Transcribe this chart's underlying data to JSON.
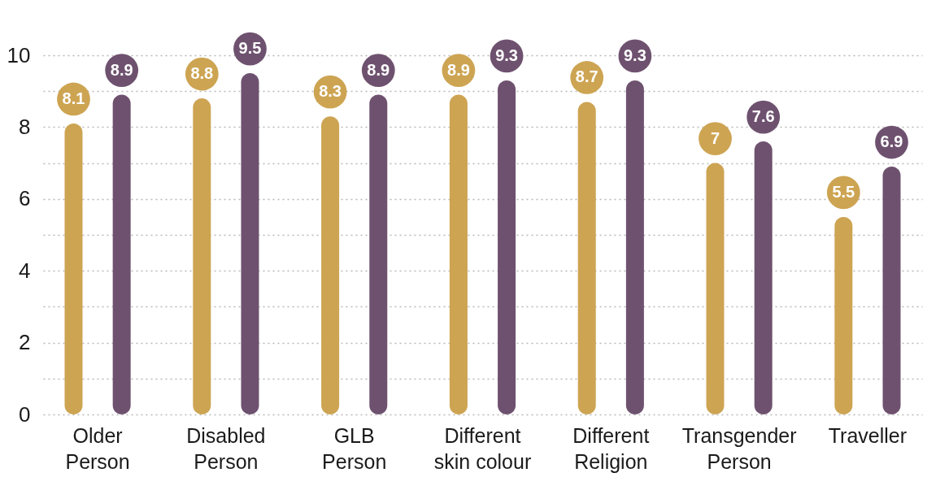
{
  "chart_data": {
    "type": "bar",
    "categories": [
      "Older Person",
      "Disabled Person",
      "GLB Person",
      "Different skin colour",
      "Different Religion",
      "Transgender Person",
      "Traveller"
    ],
    "series": [
      {
        "color": "#cda452",
        "values": [
          8.1,
          8.8,
          8.3,
          8.9,
          8.7,
          7,
          5.5
        ]
      },
      {
        "color": "#6e516f",
        "values": [
          8.9,
          9.5,
          8.9,
          9.3,
          9.3,
          7.6,
          6.9
        ]
      }
    ],
    "ylim": [
      0,
      10
    ],
    "yticks": [
      0,
      {
        "value": 1,
        "label": null
      },
      2,
      {
        "value": 3,
        "label": null
      },
      4,
      {
        "value": 5,
        "label": null
      },
      6,
      {
        "value": 7,
        "label": null
      },
      8,
      {
        "value": 9,
        "label": null
      },
      10
    ],
    "grid": "y",
    "data_labels": true
  }
}
